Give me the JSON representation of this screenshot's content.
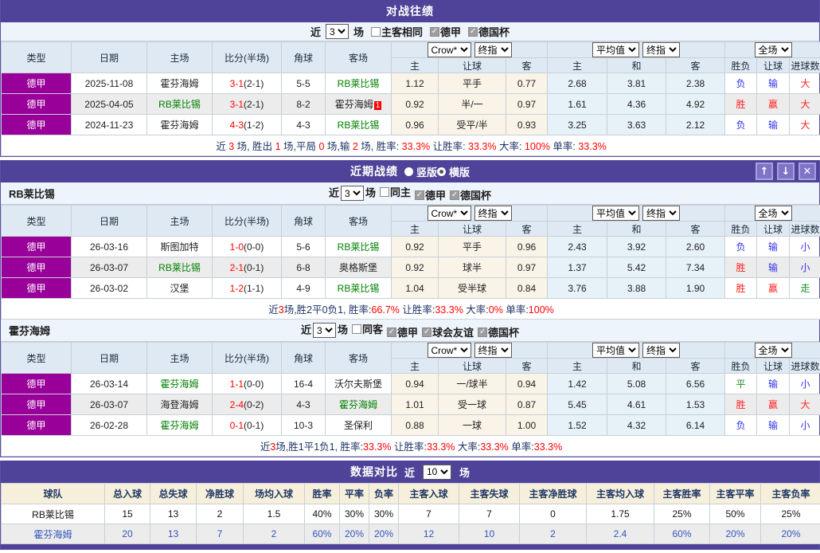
{
  "labels": {
    "near": "近",
    "games": "场"
  },
  "match_headers": {
    "cols": [
      "类型",
      "日期",
      "主场",
      "比分(半场)",
      "角球",
      "客场"
    ],
    "g1": [
      "Crow*",
      "终指"
    ],
    "g2": [
      "平均值",
      "终指"
    ],
    "g3": [
      "全场"
    ],
    "sub": [
      "主",
      "让球",
      "客",
      "主",
      "和",
      "客",
      "胜负",
      "让球",
      "进球数"
    ]
  },
  "h2h": {
    "title": "对战往绩",
    "filter": {
      "count": "3",
      "options": [
        {
          "label": "主客相同",
          "checked": false
        },
        {
          "label": "德甲",
          "checked": true
        },
        {
          "label": "德国杯",
          "checked": true
        }
      ]
    },
    "rows": [
      {
        "league": "德甲",
        "date": "2025-11-08",
        "home": {
          "name": "霍芬海姆",
          "green": false
        },
        "ft": "3-1",
        "ht": "(2-1)",
        "corner": "5-5",
        "away": {
          "name": "RB莱比锡",
          "green": true
        },
        "odds": [
          "1.12",
          "平手",
          "0.77"
        ],
        "avg": [
          "2.68",
          "3.81",
          "2.38"
        ],
        "res": [
          [
            "负",
            "blue"
          ],
          [
            "输",
            "blue"
          ],
          [
            "大",
            "red"
          ]
        ]
      },
      {
        "league": "德甲",
        "date": "2025-04-05",
        "home": {
          "name": "RB莱比锡",
          "green": true
        },
        "ft": "3-1",
        "ht": "(2-1)",
        "corner": "8-2",
        "away": {
          "name": "霍芬海姆",
          "green": false,
          "badge": "1"
        },
        "odds": [
          "0.92",
          "半/一",
          "0.97"
        ],
        "avg": [
          "1.61",
          "4.36",
          "4.92"
        ],
        "res": [
          [
            "胜",
            "red"
          ],
          [
            "赢",
            "red"
          ],
          [
            "大",
            "red"
          ]
        ]
      },
      {
        "league": "德甲",
        "date": "2024-11-23",
        "home": {
          "name": "霍芬海姆",
          "green": false
        },
        "ft": "4-3",
        "ht": "(1-2)",
        "corner": "4-3",
        "away": {
          "name": "RB莱比锡",
          "green": true
        },
        "odds": [
          "0.96",
          "受平/半",
          "0.93"
        ],
        "avg": [
          "3.25",
          "3.63",
          "2.12"
        ],
        "res": [
          [
            "负",
            "blue"
          ],
          [
            "输",
            "blue"
          ],
          [
            "大",
            "red"
          ]
        ]
      }
    ],
    "summary": [
      {
        "t": "近 "
      },
      {
        "t": "3",
        "r": 1
      },
      {
        "t": " 场, 胜出 "
      },
      {
        "t": "1",
        "r": 1
      },
      {
        "t": " 场,平局 "
      },
      {
        "t": "0",
        "r": 1
      },
      {
        "t": " 场,输 "
      },
      {
        "t": "2",
        "r": 1
      },
      {
        "t": " 场, 胜率: "
      },
      {
        "t": "33.3%",
        "r": 1
      },
      {
        "t": " 让胜率: "
      },
      {
        "t": "33.3%",
        "r": 1
      },
      {
        "t": " 大率: "
      },
      {
        "t": "100%",
        "r": 1
      },
      {
        "t": " 单率: "
      },
      {
        "t": "33.3%",
        "r": 1
      }
    ]
  },
  "recent": {
    "title": "近期战绩",
    "radios": [
      {
        "label": "竖版",
        "dot": false
      },
      {
        "label": "横版",
        "dot": true
      }
    ],
    "buttons": {
      "up": "↑",
      "down": "↓",
      "close": "✕"
    },
    "leipzig": {
      "team": "RB莱比锡",
      "filter": {
        "count": "3",
        "options": [
          {
            "label": "同主",
            "checked": false
          },
          {
            "label": "德甲",
            "checked": true
          },
          {
            "label": "德国杯",
            "checked": true
          }
        ]
      },
      "rows": [
        {
          "league": "德甲",
          "date": "26-03-16",
          "home": {
            "name": "斯图加特",
            "green": false
          },
          "ft": "1-0",
          "ht": "(0-0)",
          "corner": "5-6",
          "away": {
            "name": "RB莱比锡",
            "green": true
          },
          "odds": [
            "0.92",
            "平手",
            "0.96"
          ],
          "avg": [
            "2.43",
            "3.92",
            "2.60"
          ],
          "res": [
            [
              "负",
              "blue"
            ],
            [
              "输",
              "blue"
            ],
            [
              "小",
              "blue"
            ]
          ]
        },
        {
          "league": "德甲",
          "date": "26-03-07",
          "home": {
            "name": "RB莱比锡",
            "green": true
          },
          "ft": "2-1",
          "ht": "(0-1)",
          "corner": "6-8",
          "away": {
            "name": "奥格斯堡",
            "green": false
          },
          "odds": [
            "0.92",
            "球半",
            "0.97"
          ],
          "avg": [
            "1.37",
            "5.42",
            "7.34"
          ],
          "res": [
            [
              "胜",
              "red"
            ],
            [
              "输",
              "blue"
            ],
            [
              "小",
              "blue"
            ]
          ]
        },
        {
          "league": "德甲",
          "date": "26-03-02",
          "home": {
            "name": "汉堡",
            "green": false
          },
          "ft": "1-2",
          "ht": "(1-1)",
          "corner": "4-9",
          "away": {
            "name": "RB莱比锡",
            "green": true
          },
          "odds": [
            "1.04",
            "受半球",
            "0.84"
          ],
          "avg": [
            "3.76",
            "3.88",
            "1.90"
          ],
          "res": [
            [
              "胜",
              "red"
            ],
            [
              "赢",
              "red"
            ],
            [
              "走",
              "green"
            ]
          ]
        }
      ],
      "summary": [
        {
          "t": "近"
        },
        {
          "t": "3",
          "r": 1
        },
        {
          "t": "场,胜2平0负1, 胜率:"
        },
        {
          "t": "66.7%",
          "r": 1
        },
        {
          "t": " 让胜率:"
        },
        {
          "t": "33.3%",
          "r": 1
        },
        {
          "t": " 大率:"
        },
        {
          "t": "0%",
          "r": 1
        },
        {
          "t": " 单率:"
        },
        {
          "t": "100%",
          "r": 1
        }
      ]
    },
    "hoffenheim": {
      "team": "霍芬海姆",
      "filter": {
        "count": "3",
        "options": [
          {
            "label": "同客",
            "checked": false
          },
          {
            "label": "德甲",
            "checked": true
          },
          {
            "label": "球会友谊",
            "checked": true
          },
          {
            "label": "德国杯",
            "checked": true
          }
        ]
      },
      "rows": [
        {
          "league": "德甲",
          "date": "26-03-14",
          "home": {
            "name": "霍芬海姆",
            "green": true
          },
          "ft": "1-1",
          "ht": "(0-0)",
          "corner": "16-4",
          "away": {
            "name": "沃尔夫斯堡",
            "green": false
          },
          "odds": [
            "0.94",
            "一/球半",
            "0.94"
          ],
          "avg": [
            "1.42",
            "5.08",
            "6.56"
          ],
          "res": [
            [
              "平",
              "green"
            ],
            [
              "输",
              "blue"
            ],
            [
              "小",
              "blue"
            ]
          ]
        },
        {
          "league": "德甲",
          "date": "26-03-07",
          "home": {
            "name": "海登海姆",
            "green": false
          },
          "ft": "2-4",
          "ht": "(0-2)",
          "corner": "4-3",
          "away": {
            "name": "霍芬海姆",
            "green": true
          },
          "odds": [
            "1.01",
            "受一球",
            "0.87"
          ],
          "avg": [
            "5.45",
            "4.61",
            "1.53"
          ],
          "res": [
            [
              "胜",
              "red"
            ],
            [
              "赢",
              "red"
            ],
            [
              "大",
              "red"
            ]
          ]
        },
        {
          "league": "德甲",
          "date": "26-02-28",
          "home": {
            "name": "霍芬海姆",
            "green": true
          },
          "ft": "0-1",
          "ht": "(0-1)",
          "corner": "10-3",
          "away": {
            "name": "圣保利",
            "green": false
          },
          "odds": [
            "0.88",
            "一球",
            "1.00"
          ],
          "avg": [
            "1.52",
            "4.32",
            "6.14"
          ],
          "res": [
            [
              "负",
              "blue"
            ],
            [
              "输",
              "blue"
            ],
            [
              "小",
              "blue"
            ]
          ]
        }
      ],
      "summary": [
        {
          "t": "近"
        },
        {
          "t": "3",
          "r": 1
        },
        {
          "t": "场,胜1平1负1, 胜率:"
        },
        {
          "t": "33.3%",
          "r": 1
        },
        {
          "t": " 让胜率:"
        },
        {
          "t": "33.3%",
          "r": 1
        },
        {
          "t": " 大率:"
        },
        {
          "t": "33.3%",
          "r": 1
        },
        {
          "t": " 单率:"
        },
        {
          "t": "33.3%",
          "r": 1
        }
      ]
    }
  },
  "compare": {
    "title": "数据对比",
    "count": "10",
    "headers": [
      "球队",
      "总入球",
      "总失球",
      "净胜球",
      "场均入球",
      "胜率",
      "平率",
      "负率",
      "主客入球",
      "主客失球",
      "主客净胜球",
      "主客均入球",
      "主客胜率",
      "主客平率",
      "主客负率"
    ],
    "rows": [
      {
        "team": "RB莱比锡",
        "values": [
          "15",
          "13",
          "2",
          "1.5",
          "40%",
          "30%",
          "30%",
          "7",
          "7",
          "0",
          "1.75",
          "25%",
          "50%",
          "25%"
        ],
        "highlight": false
      },
      {
        "team": "霍芬海姆",
        "values": [
          "20",
          "13",
          "7",
          "2",
          "60%",
          "20%",
          "20%",
          "12",
          "10",
          "2",
          "2.4",
          "60%",
          "20%",
          "20%"
        ],
        "highlight": true
      }
    ]
  },
  "colors": {
    "header_purple": "#4e4398",
    "league_magenta": "#990099",
    "team_green": "#008000",
    "score_red": "#ff0000",
    "win_red": "#ff2222",
    "lose_blue": "#3232e6",
    "draw_green": "#1e8f1e",
    "odds_cream": "#faf3e8",
    "avg_blue": "#e6f1f8"
  }
}
